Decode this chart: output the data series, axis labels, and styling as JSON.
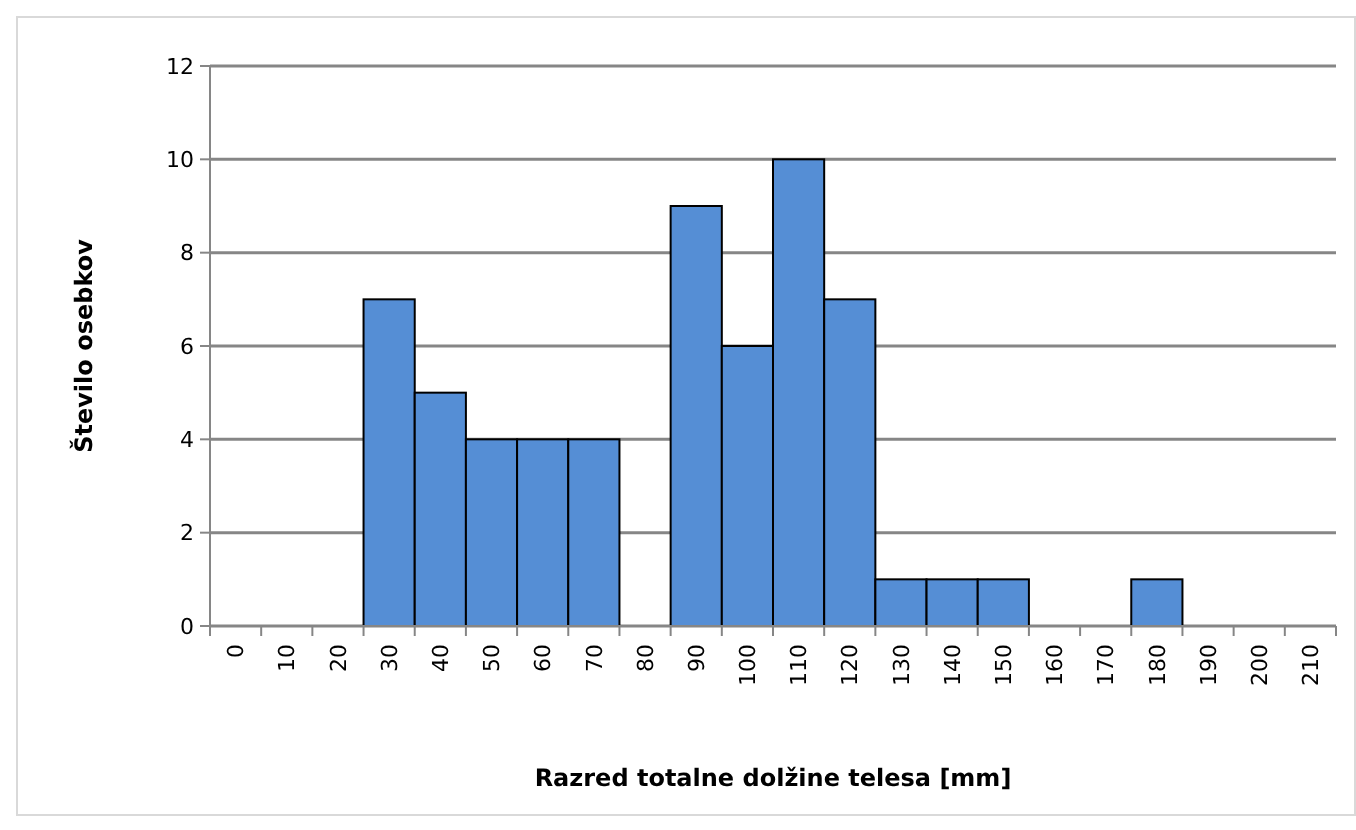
{
  "chart_data": {
    "type": "bar",
    "xlabel": "Razred totalne dolžine telesa [mm]",
    "ylabel": "Število osebkov",
    "categories": [
      "0",
      "10",
      "20",
      "30",
      "40",
      "50",
      "60",
      "70",
      "80",
      "90",
      "100",
      "110",
      "120",
      "130",
      "140",
      "150",
      "160",
      "170",
      "180",
      "190",
      "200",
      "210"
    ],
    "values": [
      0,
      0,
      0,
      7,
      5,
      4,
      4,
      4,
      0,
      9,
      6,
      10,
      7,
      1,
      1,
      1,
      0,
      0,
      1,
      0,
      0,
      0
    ],
    "color": "#558ed5",
    "ylim": [
      0,
      12
    ],
    "yticks": [
      0,
      2,
      4,
      6,
      8,
      10,
      12
    ],
    "grid": "y"
  }
}
